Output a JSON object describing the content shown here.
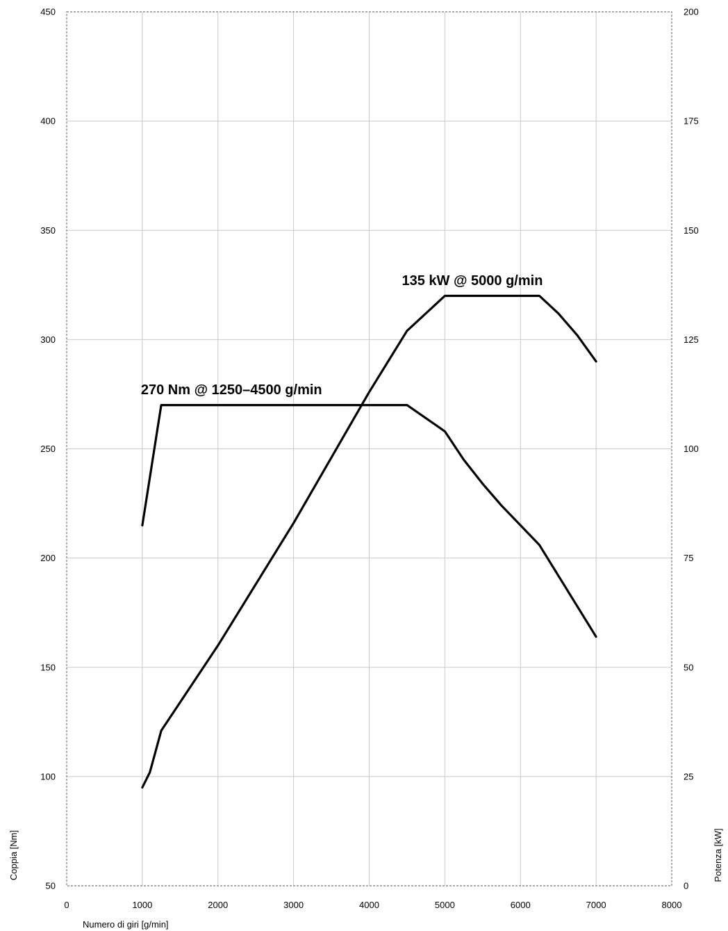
{
  "chart_data": {
    "type": "line",
    "xlabel": "Numero di giri [g/min]",
    "ylabel_left": "Coppia [Nm]",
    "ylabel_right": "Potenza [kW]",
    "xlim": [
      0,
      8000
    ],
    "ylim_left": [
      50,
      450
    ],
    "ylim_right": [
      0,
      200
    ],
    "x_ticks": [
      "0",
      "1000",
      "2000",
      "3000",
      "4000",
      "5000",
      "6000",
      "7000",
      "8000"
    ],
    "y_left_ticks": [
      "50",
      "100",
      "150",
      "200",
      "250",
      "300",
      "350",
      "400",
      "450"
    ],
    "y_right_ticks": [
      "0",
      "25",
      "50",
      "75",
      "100",
      "125",
      "150",
      "175",
      "200"
    ],
    "grid": true,
    "legend": "none",
    "series": [
      {
        "axis": "left",
        "x": [
          1000,
          1250,
          4500,
          5000,
          5250,
          5500,
          5750,
          6000,
          6250,
          6500,
          6750,
          7000
        ],
        "y": [
          215,
          270,
          270,
          258,
          245,
          234,
          224,
          215,
          206,
          192,
          178,
          164
        ]
      },
      {
        "axis": "right",
        "x": [
          1000,
          1100,
          1250,
          2000,
          3000,
          4000,
          4500,
          5000,
          6250,
          6500,
          6750,
          7000
        ],
        "y": [
          22.5,
          26,
          35.5,
          55,
          83,
          113,
          127,
          135,
          135,
          131,
          126,
          120
        ]
      }
    ],
    "annotations": [
      {
        "text": "270 Nm @ 1250–4500 g/min",
        "x": 1000,
        "y": 275,
        "axis": "left"
      },
      {
        "text": "135 kW @ 5000 g/min",
        "x": 4450,
        "y": 137.5,
        "axis": "right"
      }
    ]
  }
}
